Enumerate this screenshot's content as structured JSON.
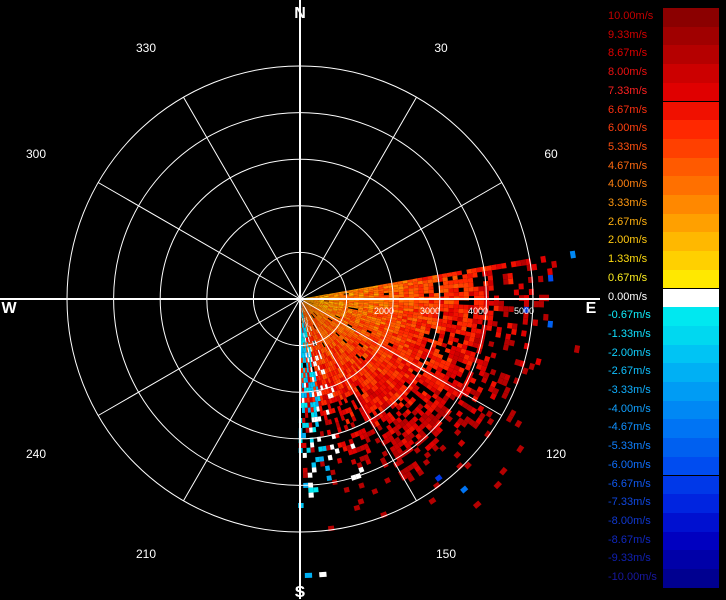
{
  "radar": {
    "compass": {
      "north": "N",
      "south": "S",
      "east": "E",
      "west": "W"
    },
    "bearing_labels": [
      "30",
      "60",
      "120",
      "150",
      "210",
      "240",
      "300",
      "330"
    ],
    "range_labels": [
      "2000",
      "3000",
      "4000",
      "5000"
    ],
    "rings": 5,
    "max_range": 5000,
    "sector_start_deg": 80,
    "sector_end_deg": 180,
    "grid_color": "#ffffff",
    "background": "#000000"
  },
  "legend": [
    {
      "label": "10.00m/s",
      "color": "#8b0000",
      "text_color": "#c40000"
    },
    {
      "label": "9.33m/s",
      "color": "#a00000",
      "text_color": "#d20000"
    },
    {
      "label": "8.67m/s",
      "color": "#b50000",
      "text_color": "#e00000"
    },
    {
      "label": "8.00m/s",
      "color": "#cc0000",
      "text_color": "#ee1010"
    },
    {
      "label": "7.33m/s",
      "color": "#e00000",
      "text_color": "#ff2020"
    },
    {
      "label": "6.67m/s",
      "color": "#f01000",
      "text_color": "#ff3010"
    },
    {
      "label": "6.00m/s",
      "color": "#ff2800",
      "text_color": "#ff4010"
    },
    {
      "label": "5.33m/s",
      "color": "#ff4000",
      "text_color": "#ff5010"
    },
    {
      "label": "4.67m/s",
      "color": "#ff5a00",
      "text_color": "#ff6a10"
    },
    {
      "label": "4.00m/s",
      "color": "#ff7000",
      "text_color": "#ff8010"
    },
    {
      "label": "3.33m/s",
      "color": "#ff8800",
      "text_color": "#ff9810"
    },
    {
      "label": "2.67m/s",
      "color": "#ffa000",
      "text_color": "#ffb010"
    },
    {
      "label": "2.00m/s",
      "color": "#ffb800",
      "text_color": "#ffc810"
    },
    {
      "label": "1.33m/s",
      "color": "#ffd000",
      "text_color": "#ffdc10"
    },
    {
      "label": "0.67m/s",
      "color": "#ffe800",
      "text_color": "#fff020"
    },
    {
      "label": "0.00m/s",
      "color": "#ffffff",
      "text_color": "#ffffff"
    },
    {
      "label": "-0.67m/s",
      "color": "#00e8f0",
      "text_color": "#10f0ff"
    },
    {
      "label": "-1.33m/s",
      "color": "#00d8f0",
      "text_color": "#10e0ff"
    },
    {
      "label": "-2.00m/s",
      "color": "#00c4f4",
      "text_color": "#10d0ff"
    },
    {
      "label": "-2.67m/s",
      "color": "#00b0f4",
      "text_color": "#10c0ff"
    },
    {
      "label": "-3.33m/s",
      "color": "#009cf4",
      "text_color": "#10b0ff"
    },
    {
      "label": "-4.00m/s",
      "color": "#0088f4",
      "text_color": "#10a0ff"
    },
    {
      "label": "-4.67m/s",
      "color": "#0074f4",
      "text_color": "#1090ff"
    },
    {
      "label": "-5.33m/s",
      "color": "#0060f0",
      "text_color": "#1080ff"
    },
    {
      "label": "-6.00m/s",
      "color": "#004cf0",
      "text_color": "#1070ff"
    },
    {
      "label": "-6.67m/s",
      "color": "#0038e8",
      "text_color": "#1058f0"
    },
    {
      "label": "-7.33m/s",
      "color": "#0024e0",
      "text_color": "#1048e0"
    },
    {
      "label": "-8.00m/s",
      "color": "#0010d0",
      "text_color": "#1038d0"
    },
    {
      "label": "-8.67m/s",
      "color": "#0000c0",
      "text_color": "#1028c0"
    },
    {
      "label": "-9.33m/s",
      "color": "#0000a8",
      "text_color": "#1020b0"
    },
    {
      "label": "-10.00m/s",
      "color": "#000090",
      "text_color": "#1818a0"
    }
  ]
}
